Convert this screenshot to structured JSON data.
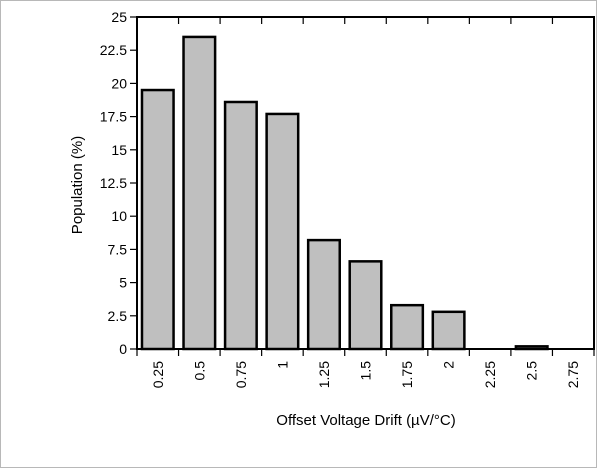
{
  "chart_data": {
    "type": "bar",
    "title": "",
    "xlabel": "Offset Voltage Drift (µV/°C)",
    "ylabel": "Population  (%)",
    "categories": [
      "0.25",
      "0.5",
      "0.75",
      "1",
      "1.25",
      "1.5",
      "1.75",
      "2",
      "2.25",
      "2.5",
      "2.75"
    ],
    "values": [
      19.5,
      23.5,
      18.6,
      17.7,
      8.2,
      6.6,
      3.3,
      2.8,
      0,
      0.2,
      0
    ],
    "ylim": [
      0,
      25
    ],
    "yticks": [
      "0",
      "2.5",
      "5",
      "7.5",
      "10",
      "12.5",
      "15",
      "17.5",
      "20",
      "22.5",
      "25"
    ],
    "grid": false,
    "bar_color": "#bfbfbf",
    "bar_edge_color": "#000000"
  }
}
